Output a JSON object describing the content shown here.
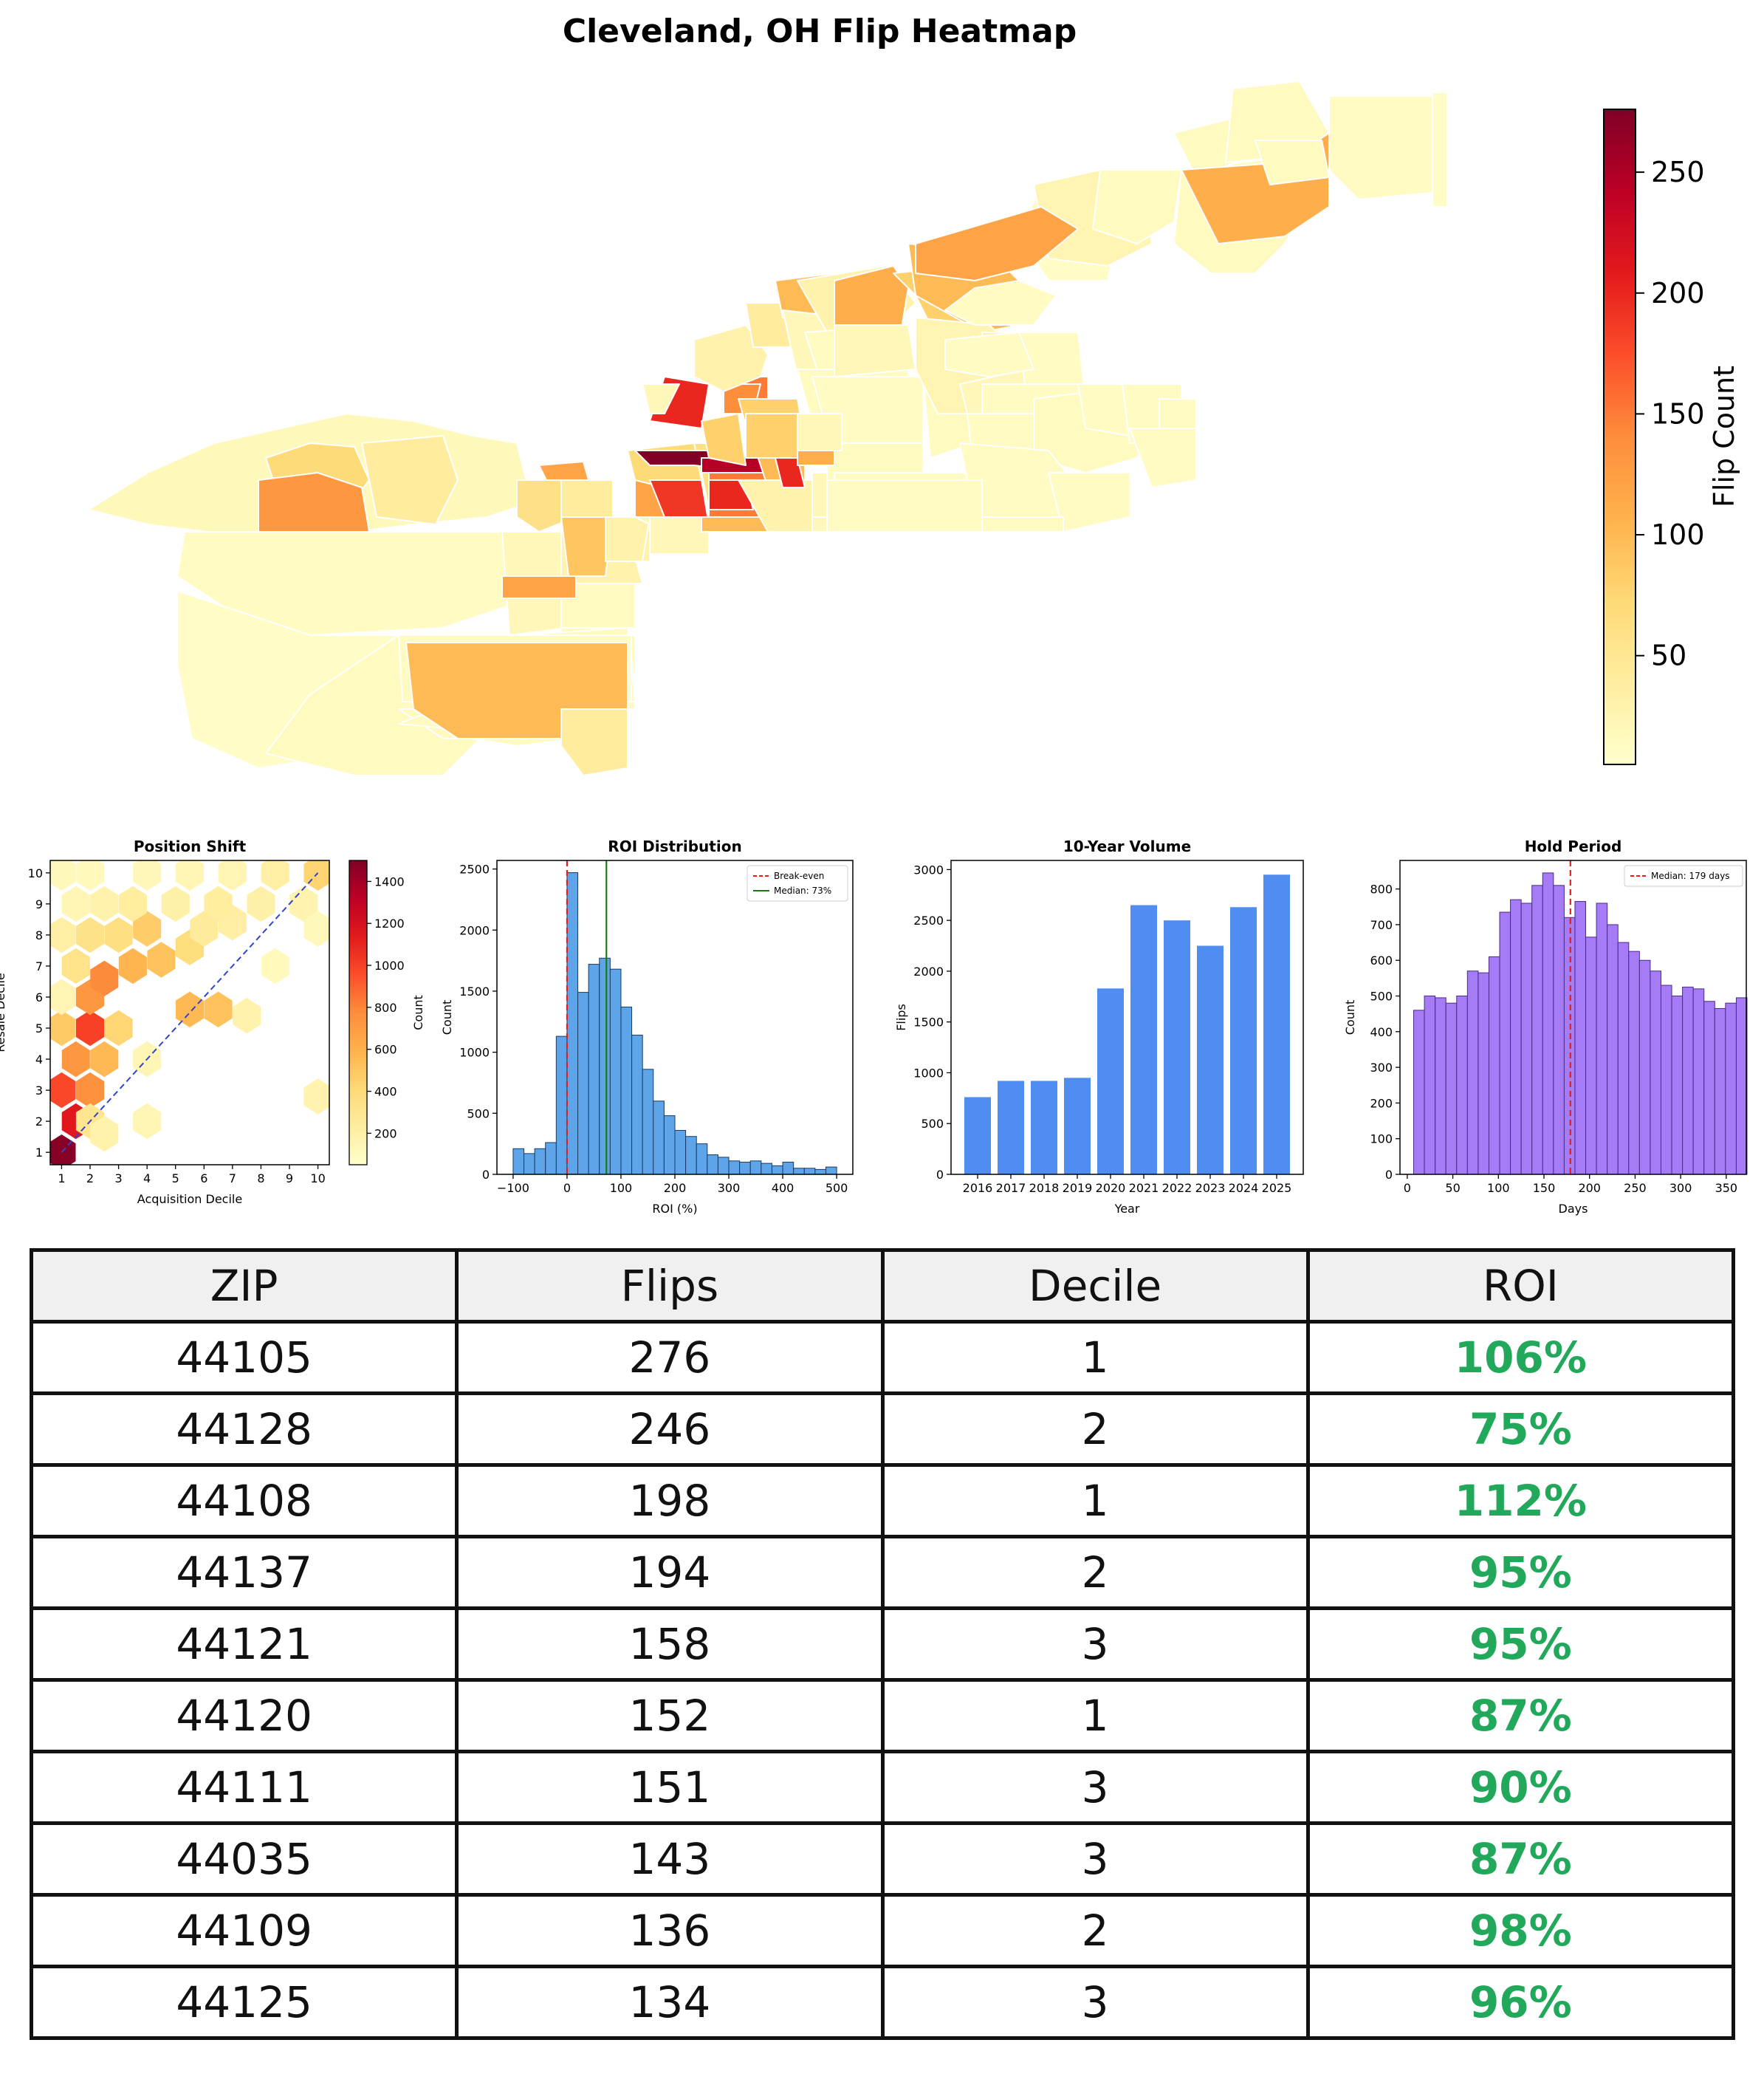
{
  "map": {
    "title": "Cleveland, OH Flip Heatmap",
    "colorbar_label": "Flip Count",
    "colorbar_ticks": [
      50,
      100,
      150,
      200,
      250
    ],
    "colorbar_range": [
      5,
      276
    ]
  },
  "chart_data": [
    {
      "type": "heatmap",
      "title": "Position Shift",
      "xlabel": "Acquisition Decile",
      "ylabel": "Resale Decile",
      "xlim": [
        0.6,
        10.4
      ],
      "ylim": [
        0.6,
        10.4
      ],
      "xticks": [
        1,
        2,
        3,
        4,
        5,
        6,
        7,
        8,
        9,
        10
      ],
      "yticks": [
        1,
        2,
        3,
        4,
        5,
        6,
        7,
        8,
        9,
        10
      ],
      "colorbar_label": "Count",
      "colorbar_ticks": [
        200,
        400,
        600,
        800,
        1000,
        1200,
        1400
      ],
      "colorbar_range": [
        50,
        1500
      ],
      "cells": [
        {
          "x": 1,
          "y": 1,
          "v": 1480
        },
        {
          "x": 1.5,
          "y": 2,
          "v": 1150
        },
        {
          "x": 1,
          "y": 3,
          "v": 980
        },
        {
          "x": 2,
          "y": 3,
          "v": 750
        },
        {
          "x": 1.5,
          "y": 4,
          "v": 720
        },
        {
          "x": 2.5,
          "y": 4,
          "v": 560
        },
        {
          "x": 2,
          "y": 5,
          "v": 1000
        },
        {
          "x": 1,
          "y": 5,
          "v": 480
        },
        {
          "x": 3,
          "y": 5,
          "v": 420
        },
        {
          "x": 2,
          "y": 2,
          "v": 300
        },
        {
          "x": 2.5,
          "y": 1.6,
          "v": 180
        },
        {
          "x": 1,
          "y": 6,
          "v": 160
        },
        {
          "x": 2,
          "y": 6,
          "v": 720
        },
        {
          "x": 2.5,
          "y": 6.6,
          "v": 780
        },
        {
          "x": 1.5,
          "y": 7,
          "v": 320
        },
        {
          "x": 3.5,
          "y": 7,
          "v": 580
        },
        {
          "x": 4.5,
          "y": 7.2,
          "v": 520
        },
        {
          "x": 5.5,
          "y": 7.6,
          "v": 380
        },
        {
          "x": 1,
          "y": 8,
          "v": 210
        },
        {
          "x": 2,
          "y": 8,
          "v": 330
        },
        {
          "x": 3,
          "y": 8,
          "v": 360
        },
        {
          "x": 4,
          "y": 8.2,
          "v": 470
        },
        {
          "x": 6,
          "y": 8.2,
          "v": 250
        },
        {
          "x": 7,
          "y": 8.4,
          "v": 220
        },
        {
          "x": 1.5,
          "y": 9,
          "v": 140
        },
        {
          "x": 2.5,
          "y": 9,
          "v": 180
        },
        {
          "x": 3.5,
          "y": 9,
          "v": 230
        },
        {
          "x": 5,
          "y": 9,
          "v": 200
        },
        {
          "x": 6.5,
          "y": 9,
          "v": 230
        },
        {
          "x": 8,
          "y": 9,
          "v": 200
        },
        {
          "x": 9.5,
          "y": 9,
          "v": 170
        },
        {
          "x": 1,
          "y": 10,
          "v": 120
        },
        {
          "x": 2,
          "y": 10,
          "v": 110
        },
        {
          "x": 4,
          "y": 10,
          "v": 130
        },
        {
          "x": 5.5,
          "y": 10,
          "v": 140
        },
        {
          "x": 7,
          "y": 10,
          "v": 160
        },
        {
          "x": 8.5,
          "y": 10,
          "v": 210
        },
        {
          "x": 10,
          "y": 10,
          "v": 430
        },
        {
          "x": 5.5,
          "y": 5.6,
          "v": 560
        },
        {
          "x": 6.5,
          "y": 5.6,
          "v": 520
        },
        {
          "x": 7.5,
          "y": 5.4,
          "v": 180
        },
        {
          "x": 4,
          "y": 4,
          "v": 140
        },
        {
          "x": 4,
          "y": 2,
          "v": 150
        },
        {
          "x": 10,
          "y": 2.8,
          "v": 170
        },
        {
          "x": 10,
          "y": 8.2,
          "v": 120
        },
        {
          "x": 8.5,
          "y": 7,
          "v": 110
        }
      ],
      "diagonal": [
        [
          1,
          1
        ],
        [
          10,
          10
        ]
      ]
    },
    {
      "type": "bar",
      "title": "ROI Distribution",
      "xlabel": "ROI (%)",
      "ylabel": "Count",
      "xlim": [
        -130,
        530
      ],
      "ylim": [
        0,
        2570
      ],
      "xticks": [
        -100,
        0,
        100,
        200,
        300,
        400,
        500
      ],
      "yticks": [
        0,
        500,
        1000,
        1500,
        2000,
        2500
      ],
      "bin_start": -100,
      "bin_width": 20,
      "values": [
        210,
        170,
        210,
        260,
        1130,
        2470,
        1490,
        1720,
        1770,
        1680,
        1370,
        1140,
        860,
        600,
        480,
        360,
        310,
        250,
        160,
        140,
        110,
        100,
        110,
        90,
        70,
        100,
        50,
        50,
        40,
        60
      ],
      "lines": [
        {
          "x": 0,
          "label": "Break-even",
          "color": "#e02020",
          "dash": true
        },
        {
          "x": 73,
          "label": "Median: 73%",
          "color": "#1a7a1a",
          "dash": false
        }
      ]
    },
    {
      "type": "bar",
      "title": "10-Year Volume",
      "xlabel": "Year",
      "ylabel": "Flips",
      "categories": [
        "2016",
        "2017",
        "2018",
        "2019",
        "2020",
        "2021",
        "2022",
        "2023",
        "2024",
        "2025"
      ],
      "values": [
        760,
        920,
        920,
        950,
        1830,
        2650,
        2500,
        2250,
        2630,
        2950
      ],
      "ylim": [
        0,
        3090
      ],
      "yticks": [
        0,
        500,
        1000,
        1500,
        2000,
        2500,
        3000
      ]
    },
    {
      "type": "bar",
      "title": "Hold Period",
      "xlabel": "Days",
      "ylabel": "Count",
      "xlim": [
        -8,
        372
      ],
      "ylim": [
        0,
        880
      ],
      "xticks": [
        0,
        50,
        100,
        150,
        200,
        250,
        300,
        350
      ],
      "yticks": [
        0,
        100,
        200,
        300,
        400,
        500,
        600,
        700,
        800
      ],
      "bin_start": 7,
      "bin_width": 11.8,
      "values": [
        460,
        500,
        495,
        480,
        500,
        570,
        565,
        610,
        735,
        770,
        760,
        810,
        845,
        810,
        720,
        765,
        665,
        760,
        700,
        650,
        625,
        600,
        570,
        530,
        500,
        525,
        520,
        485,
        465,
        480,
        495
      ],
      "lines": [
        {
          "x": 179,
          "label": "Median: 179 days",
          "color": "#e02020",
          "dash": true
        }
      ]
    }
  ],
  "table": {
    "headers": [
      "ZIP",
      "Flips",
      "Decile",
      "ROI"
    ],
    "rows": [
      [
        "44105",
        "276",
        "1",
        "106%"
      ],
      [
        "44128",
        "246",
        "2",
        "75%"
      ],
      [
        "44108",
        "198",
        "1",
        "112%"
      ],
      [
        "44137",
        "194",
        "2",
        "95%"
      ],
      [
        "44121",
        "158",
        "3",
        "95%"
      ],
      [
        "44120",
        "152",
        "1",
        "87%"
      ],
      [
        "44111",
        "151",
        "3",
        "90%"
      ],
      [
        "44035",
        "143",
        "3",
        "87%"
      ],
      [
        "44109",
        "136",
        "2",
        "98%"
      ],
      [
        "44125",
        "134",
        "3",
        "96%"
      ]
    ]
  }
}
